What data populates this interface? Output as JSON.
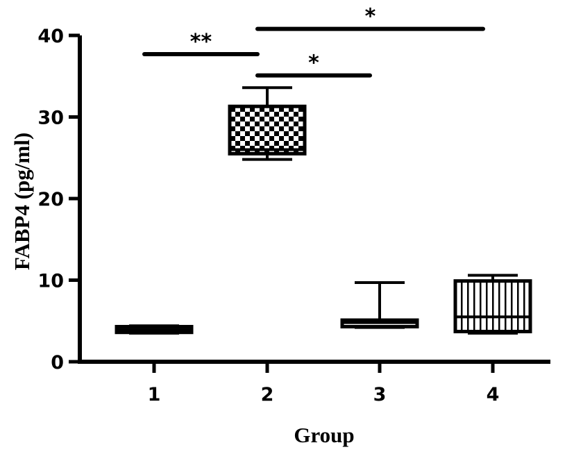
{
  "chart_data": {
    "type": "box",
    "xlabel": "Group",
    "ylabel": "FABP4 (pg/ml)",
    "ylim": [
      0,
      40
    ],
    "yticks": [
      0,
      10,
      20,
      30,
      40
    ],
    "categories": [
      "1",
      "2",
      "3",
      "4"
    ],
    "boxes": [
      {
        "category": "1",
        "min": 3.5,
        "q1": 3.6,
        "median": 3.9,
        "q3": 4.3,
        "max": 4.4,
        "pattern": "solid"
      },
      {
        "category": "2",
        "min": 24.8,
        "q1": 25.5,
        "median": 26.0,
        "q3": 31.3,
        "max": 33.6,
        "pattern": "checker"
      },
      {
        "category": "3",
        "min": 4.2,
        "q1": 4.3,
        "median": 4.8,
        "q3": 5.1,
        "max": 9.7,
        "pattern": "plain"
      },
      {
        "category": "4",
        "min": 3.5,
        "q1": 3.7,
        "median": 5.5,
        "q3": 9.9,
        "max": 10.6,
        "pattern": "vertical-lines"
      }
    ],
    "significance": [
      {
        "from": "1",
        "to": "2",
        "y": 37.7,
        "label": "**"
      },
      {
        "from": "2",
        "to": "3",
        "y": 35.1,
        "label": "*"
      },
      {
        "from": "2",
        "to": "4",
        "y": 40.8,
        "label": "*"
      }
    ],
    "grid": false,
    "legend": "none"
  }
}
